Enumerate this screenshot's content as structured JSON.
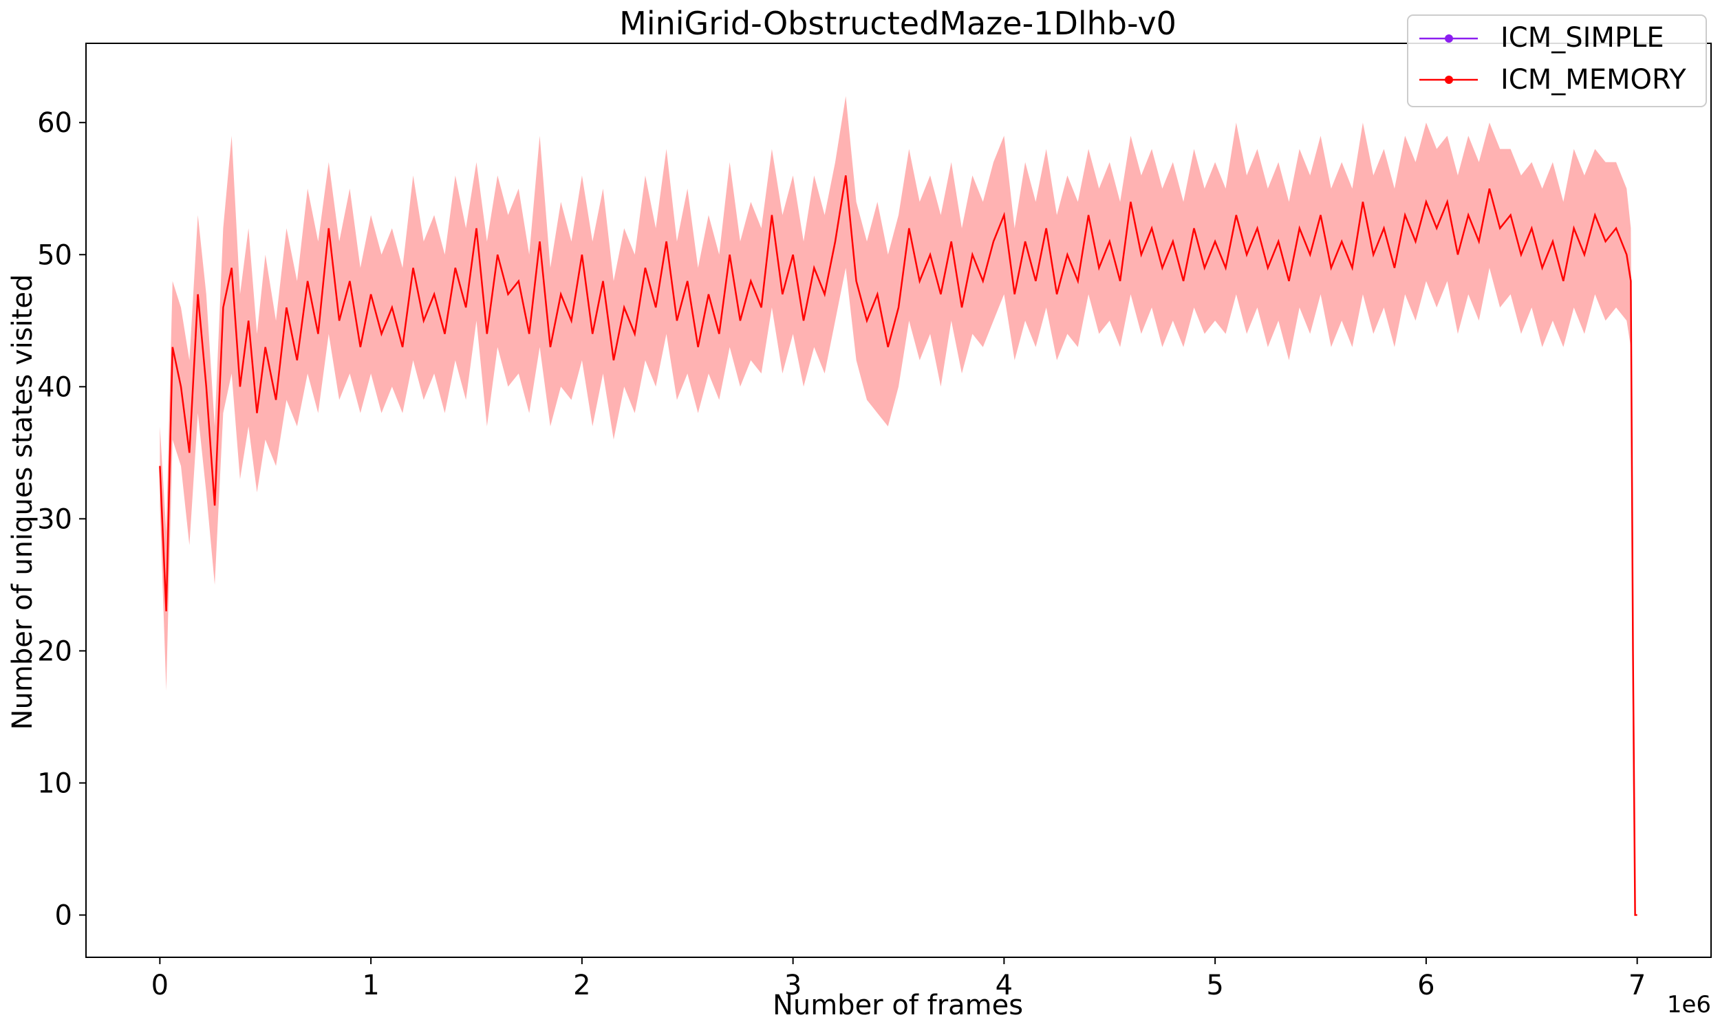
{
  "chart_data": {
    "type": "line",
    "title": "MiniGrid-ObstructedMaze-1Dlhb-v0",
    "xlabel": "Number of frames",
    "ylabel": "Number of uniques states visited",
    "x_scale_label": "1e6",
    "x_ticks": [
      0,
      1,
      2,
      3,
      4,
      5,
      6,
      7
    ],
    "y_ticks": [
      0,
      10,
      20,
      30,
      40,
      50,
      60
    ],
    "xlim": [
      -0.35,
      7.35
    ],
    "ylim": [
      -3.2,
      66
    ],
    "grid": false,
    "legend_position": "top-right",
    "series": [
      {
        "name": "ICM_SIMPLE",
        "color": "#8B1EF0",
        "values": []
      },
      {
        "name": "ICM_MEMORY",
        "color": "#FF0000",
        "band_color": "#FF0000",
        "x": [
          0.0,
          0.03,
          0.06,
          0.1,
          0.14,
          0.18,
          0.22,
          0.26,
          0.3,
          0.34,
          0.38,
          0.42,
          0.46,
          0.5,
          0.55,
          0.6,
          0.65,
          0.7,
          0.75,
          0.8,
          0.85,
          0.9,
          0.95,
          1.0,
          1.05,
          1.1,
          1.15,
          1.2,
          1.25,
          1.3,
          1.35,
          1.4,
          1.45,
          1.5,
          1.55,
          1.6,
          1.65,
          1.7,
          1.75,
          1.8,
          1.85,
          1.9,
          1.95,
          2.0,
          2.05,
          2.1,
          2.15,
          2.2,
          2.25,
          2.3,
          2.35,
          2.4,
          2.45,
          2.5,
          2.55,
          2.6,
          2.65,
          2.7,
          2.75,
          2.8,
          2.85,
          2.9,
          2.95,
          3.0,
          3.05,
          3.1,
          3.15,
          3.2,
          3.25,
          3.3,
          3.35,
          3.4,
          3.45,
          3.5,
          3.55,
          3.6,
          3.65,
          3.7,
          3.75,
          3.8,
          3.85,
          3.9,
          3.95,
          4.0,
          4.05,
          4.1,
          4.15,
          4.2,
          4.25,
          4.3,
          4.35,
          4.4,
          4.45,
          4.5,
          4.55,
          4.6,
          4.65,
          4.7,
          4.75,
          4.8,
          4.85,
          4.9,
          4.95,
          5.0,
          5.05,
          5.1,
          5.15,
          5.2,
          5.25,
          5.3,
          5.35,
          5.4,
          5.45,
          5.5,
          5.55,
          5.6,
          5.65,
          5.7,
          5.75,
          5.8,
          5.85,
          5.9,
          5.95,
          6.0,
          6.05,
          6.1,
          6.15,
          6.2,
          6.25,
          6.3,
          6.35,
          6.4,
          6.45,
          6.5,
          6.55,
          6.6,
          6.65,
          6.7,
          6.75,
          6.8,
          6.85,
          6.9,
          6.95,
          6.97,
          6.98,
          6.99,
          7.0
        ],
        "values": [
          34,
          23,
          43,
          40,
          35,
          47,
          40,
          31,
          46,
          49,
          40,
          45,
          38,
          43,
          39,
          46,
          42,
          48,
          44,
          52,
          45,
          48,
          43,
          47,
          44,
          46,
          43,
          49,
          45,
          47,
          44,
          49,
          46,
          52,
          44,
          50,
          47,
          48,
          44,
          51,
          43,
          47,
          45,
          50,
          44,
          48,
          42,
          46,
          44,
          49,
          46,
          51,
          45,
          48,
          43,
          47,
          44,
          50,
          45,
          48,
          46,
          53,
          47,
          50,
          45,
          49,
          47,
          51,
          56,
          48,
          45,
          47,
          43,
          46,
          52,
          48,
          50,
          47,
          51,
          46,
          50,
          48,
          51,
          53,
          47,
          51,
          48,
          52,
          47,
          50,
          48,
          53,
          49,
          51,
          48,
          54,
          50,
          52,
          49,
          51,
          48,
          52,
          49,
          51,
          49,
          53,
          50,
          52,
          49,
          51,
          48,
          52,
          50,
          53,
          49,
          51,
          49,
          54,
          50,
          52,
          49,
          53,
          51,
          54,
          52,
          54,
          50,
          53,
          51,
          55,
          52,
          53,
          50,
          52,
          49,
          51,
          48,
          52,
          50,
          53,
          51,
          52,
          50,
          48,
          20,
          0,
          0
        ],
        "lower": [
          31,
          17,
          36,
          34,
          28,
          38,
          32,
          25,
          38,
          41,
          33,
          37,
          32,
          36,
          34,
          39,
          37,
          41,
          38,
          44,
          39,
          41,
          38,
          41,
          38,
          40,
          38,
          42,
          39,
          41,
          38,
          42,
          39,
          45,
          37,
          43,
          40,
          41,
          38,
          43,
          37,
          40,
          39,
          42,
          37,
          41,
          36,
          40,
          38,
          42,
          40,
          44,
          39,
          41,
          38,
          41,
          39,
          43,
          40,
          42,
          41,
          46,
          41,
          44,
          40,
          43,
          41,
          45,
          49,
          42,
          39,
          38,
          37,
          40,
          45,
          42,
          44,
          40,
          45,
          41,
          44,
          43,
          45,
          47,
          42,
          45,
          43,
          46,
          42,
          44,
          43,
          47,
          44,
          45,
          43,
          47,
          44,
          46,
          43,
          45,
          43,
          46,
          44,
          45,
          44,
          47,
          44,
          46,
          43,
          45,
          42,
          46,
          44,
          47,
          43,
          45,
          43,
          47,
          44,
          46,
          43,
          47,
          45,
          48,
          46,
          48,
          44,
          47,
          45,
          49,
          46,
          47,
          44,
          46,
          43,
          45,
          43,
          46,
          44,
          47,
          45,
          46,
          45,
          43,
          10,
          0,
          0
        ],
        "upper": [
          37,
          29,
          48,
          46,
          42,
          53,
          47,
          37,
          52,
          59,
          47,
          52,
          44,
          50,
          45,
          52,
          48,
          55,
          51,
          57,
          51,
          55,
          49,
          53,
          50,
          52,
          49,
          56,
          51,
          53,
          50,
          56,
          52,
          57,
          51,
          56,
          53,
          55,
          50,
          59,
          49,
          54,
          51,
          56,
          51,
          55,
          48,
          52,
          50,
          56,
          52,
          58,
          51,
          55,
          49,
          53,
          50,
          57,
          51,
          54,
          52,
          58,
          53,
          56,
          51,
          56,
          53,
          57,
          62,
          54,
          51,
          54,
          50,
          53,
          58,
          54,
          56,
          53,
          57,
          52,
          56,
          54,
          57,
          59,
          52,
          57,
          54,
          58,
          53,
          56,
          54,
          58,
          55,
          57,
          54,
          59,
          56,
          58,
          55,
          57,
          54,
          58,
          55,
          57,
          55,
          60,
          56,
          58,
          55,
          57,
          54,
          58,
          56,
          59,
          55,
          57,
          55,
          60,
          56,
          58,
          55,
          59,
          57,
          60,
          58,
          59,
          56,
          59,
          57,
          60,
          58,
          58,
          56,
          57,
          55,
          57,
          54,
          58,
          56,
          58,
          57,
          57,
          55,
          52,
          30,
          0,
          0
        ]
      }
    ]
  }
}
